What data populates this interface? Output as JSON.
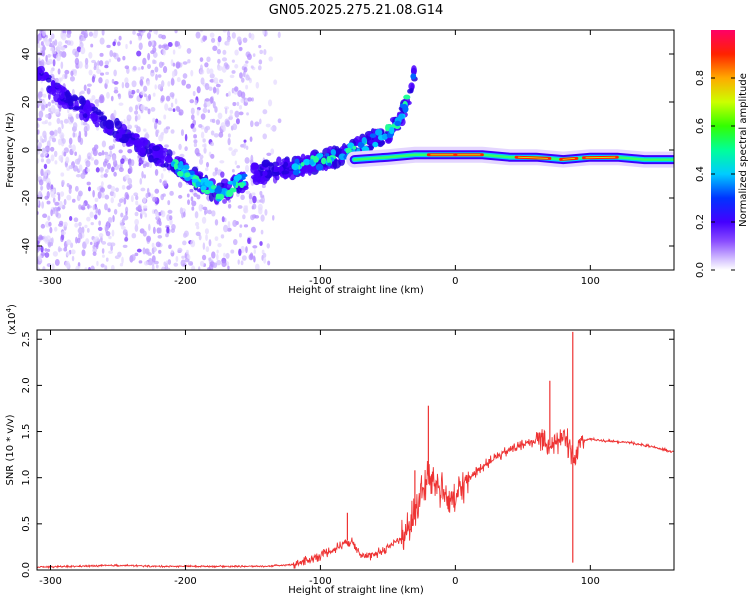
{
  "title": "GN05.2025.275.21.08.G14",
  "chart_data": [
    {
      "type": "heatmap",
      "name": "spectrogram",
      "xlabel": "Height of straight line (km)",
      "ylabel": "Frequency (Hz)",
      "xlim": [
        -310,
        162
      ],
      "ylim": [
        -50,
        50
      ],
      "xticks": [
        -300,
        -200,
        -100,
        0,
        100
      ],
      "yticks": [
        -40,
        -20,
        0,
        20,
        40
      ],
      "colorbar": {
        "label": "Normalized spectral amplitude",
        "range": [
          0,
          1
        ],
        "ticks": [
          0.0,
          0.2,
          0.4,
          0.6,
          0.8
        ]
      },
      "ridges": [
        {
          "name": "descending-branch",
          "points": [
            [
              -310,
              32
            ],
            [
              -290,
              22
            ],
            [
              -270,
              15
            ],
            [
              -250,
              8
            ],
            [
              -230,
              1
            ],
            [
              -210,
              -5
            ],
            [
              -195,
              -11
            ],
            [
              -185,
              -15
            ],
            [
              -175,
              -18
            ],
            [
              -165,
              -15
            ],
            [
              -155,
              -12
            ]
          ]
        },
        {
          "name": "rising-branch",
          "points": [
            [
              -150,
              -10
            ],
            [
              -130,
              -8
            ],
            [
              -110,
              -6
            ],
            [
              -95,
              -4
            ],
            [
              -80,
              -1
            ],
            [
              -65,
              3
            ],
            [
              -50,
              7
            ],
            [
              -40,
              14
            ],
            [
              -35,
              22
            ],
            [
              -30,
              33
            ]
          ]
        },
        {
          "name": "steady-band",
          "points": [
            [
              -75,
              -4
            ],
            [
              -50,
              -3
            ],
            [
              -30,
              -2
            ],
            [
              -10,
              -2
            ],
            [
              0,
              -2
            ],
            [
              20,
              -2
            ],
            [
              40,
              -3
            ],
            [
              60,
              -3
            ],
            [
              80,
              -4
            ],
            [
              100,
              -3
            ],
            [
              120,
              -3
            ],
            [
              140,
              -4
            ],
            [
              162,
              -4
            ]
          ]
        }
      ]
    },
    {
      "type": "line",
      "name": "snr",
      "xlabel": "Height of straight line (km)",
      "ylabel": "SNR (10 * v/v)",
      "yscale_label": "(x10",
      "yscale_exp": "4",
      "xlim": [
        -310,
        162
      ],
      "ylim": [
        0,
        2.6
      ],
      "xticks": [
        -300,
        -200,
        -100,
        0,
        100
      ],
      "yticks": [
        0.0,
        0.5,
        1.0,
        1.5,
        2.0,
        2.5
      ],
      "series": [
        {
          "name": "SNR",
          "color": "#ee3333",
          "x": [
            -310,
            -280,
            -250,
            -220,
            -190,
            -160,
            -140,
            -120,
            -110,
            -100,
            -90,
            -85,
            -80,
            -75,
            -70,
            -65,
            -60,
            -55,
            -50,
            -45,
            -40,
            -35,
            -30,
            -25,
            -20,
            -15,
            -10,
            -5,
            0,
            5,
            10,
            20,
            30,
            40,
            50,
            60,
            65,
            70,
            75,
            80,
            85,
            88,
            90,
            95,
            100,
            110,
            120,
            130,
            140,
            150,
            162
          ],
          "y": [
            0.03,
            0.04,
            0.05,
            0.04,
            0.04,
            0.04,
            0.04,
            0.06,
            0.1,
            0.16,
            0.22,
            0.27,
            0.32,
            0.28,
            0.18,
            0.14,
            0.16,
            0.2,
            0.25,
            0.3,
            0.35,
            0.45,
            0.62,
            0.82,
            1.02,
            0.95,
            0.85,
            0.78,
            0.75,
            0.9,
            1.0,
            1.12,
            1.22,
            1.3,
            1.36,
            1.4,
            1.42,
            1.35,
            1.42,
            1.4,
            1.38,
            1.1,
            1.35,
            1.4,
            1.42,
            1.4,
            1.39,
            1.38,
            1.35,
            1.32,
            1.28
          ]
        }
      ],
      "spikes": [
        [
          -80,
          0.62
        ],
        [
          -20,
          1.78
        ],
        [
          -30,
          1.08
        ],
        [
          70,
          2.05
        ],
        [
          87,
          2.58
        ],
        [
          87,
          0.08
        ]
      ]
    }
  ]
}
